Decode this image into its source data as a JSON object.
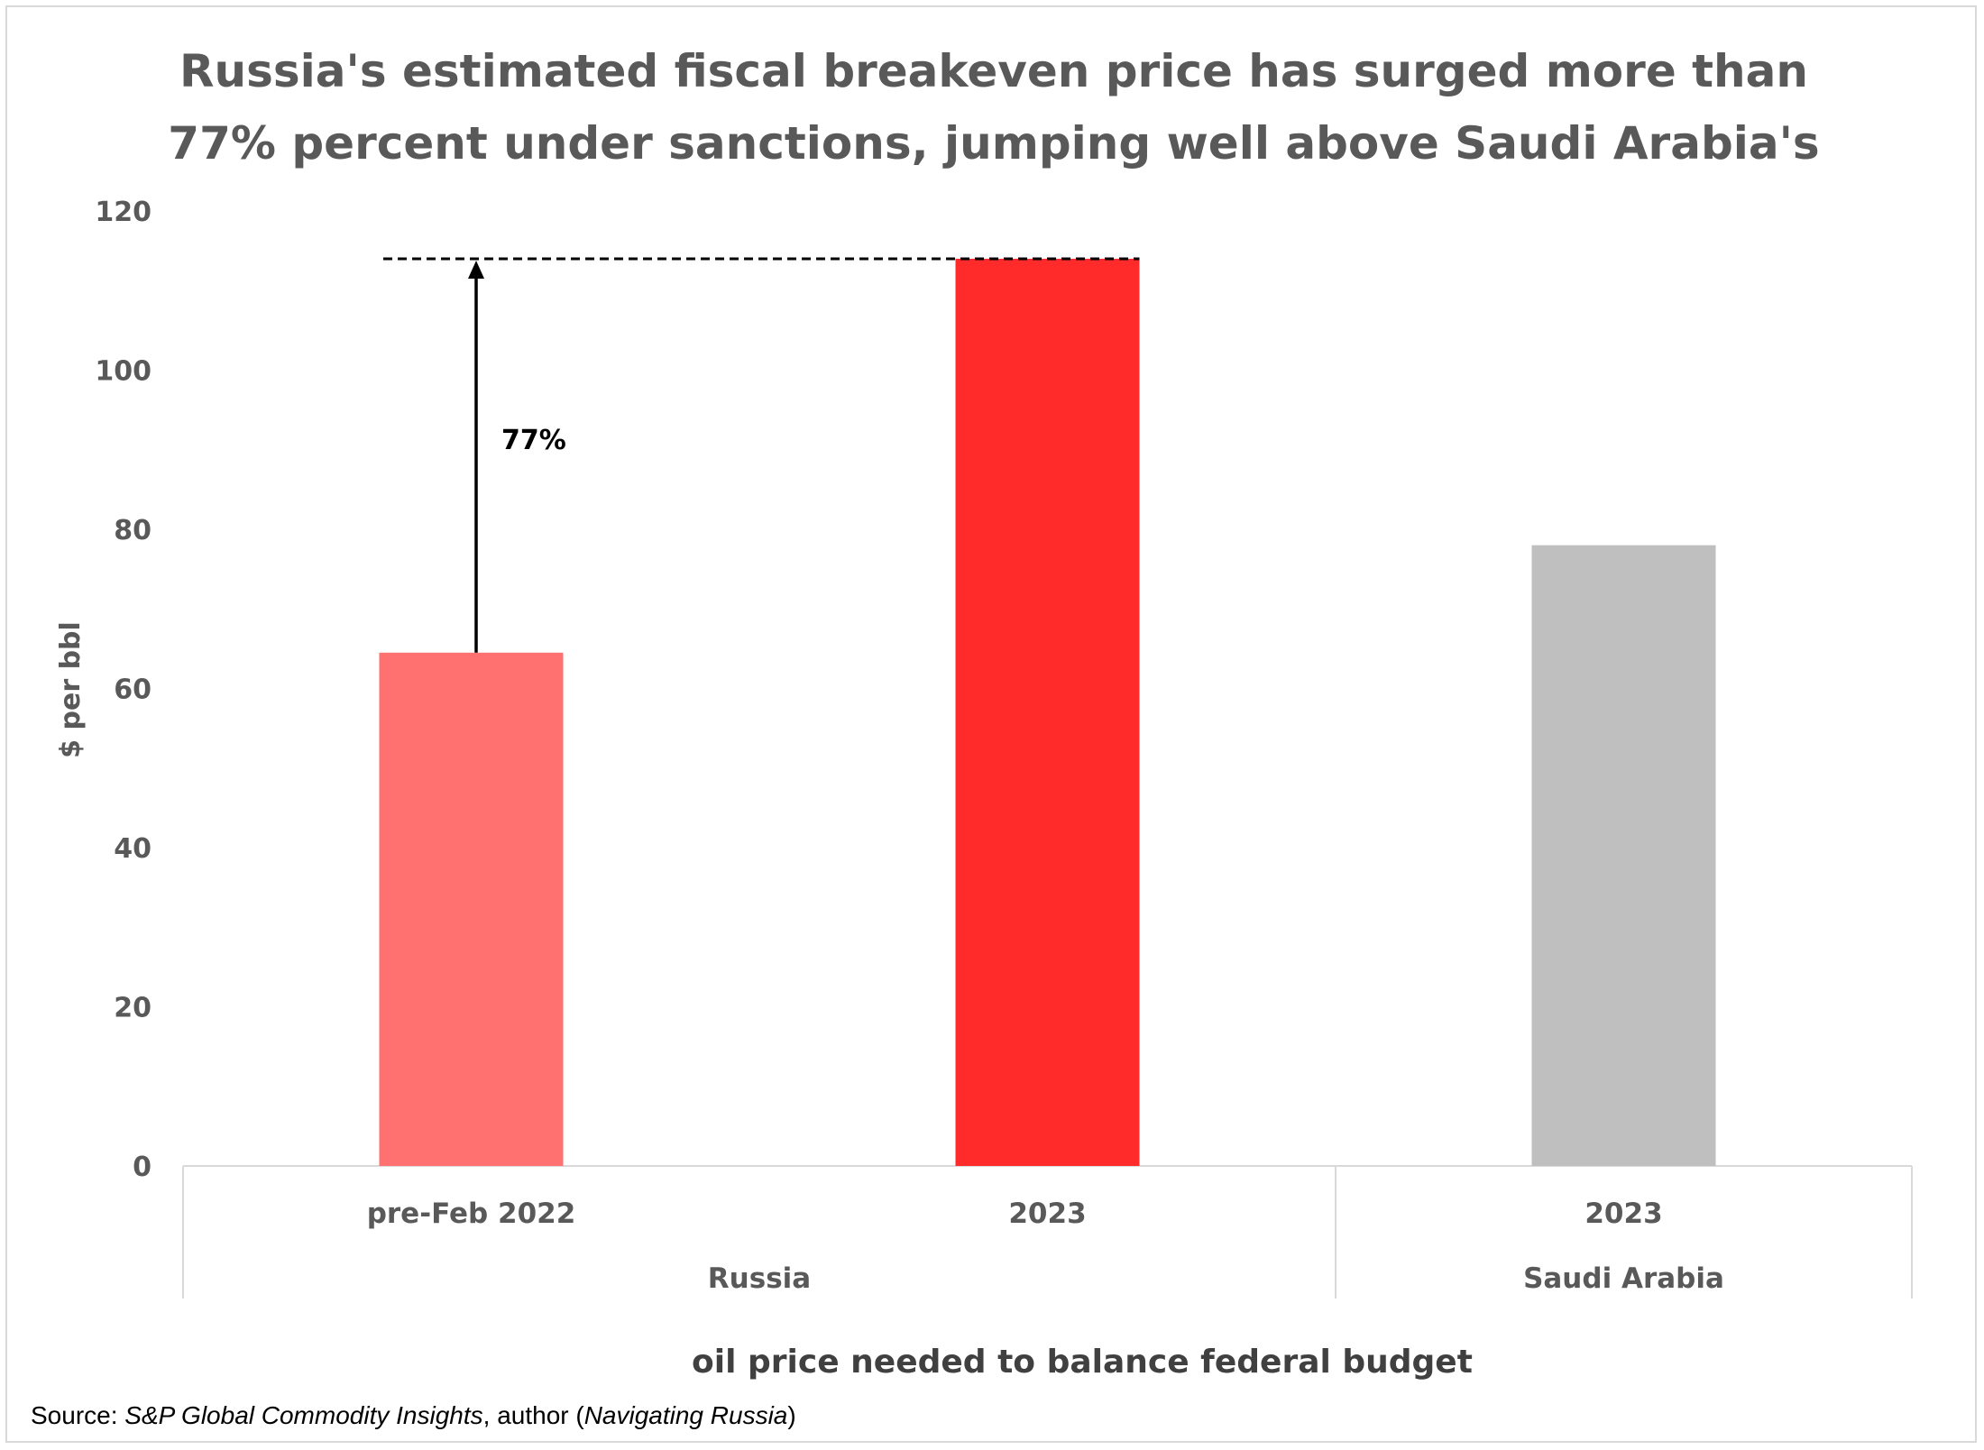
{
  "chart_data": {
    "type": "bar",
    "title": [
      "Russia's estimated fiscal breakeven price has surged more than",
      "77% percent under sanctions, jumping well above Saudi Arabia's"
    ],
    "ylabel": "$ per bbl",
    "xlabel": "oil price needed to balance federal budget",
    "ylim": [
      0,
      120
    ],
    "yticks": [
      0,
      20,
      40,
      60,
      80,
      100,
      120
    ],
    "categories": [
      "pre-Feb 2022",
      "2023",
      "2023"
    ],
    "groups": [
      {
        "label": "Russia",
        "span": 2
      },
      {
        "label": "Saudi Arabia",
        "span": 1
      }
    ],
    "values": [
      64.5,
      114,
      78
    ],
    "colors": [
      "#ff7171",
      "#ff2a2a",
      "#bfbfbf"
    ],
    "grid": false,
    "annotation": {
      "text": "77%",
      "from": 64.5,
      "to": 114,
      "reference_line_value": 114,
      "line_style": "dashed"
    }
  },
  "source": {
    "prefix": "Source: ",
    "publisher": "S&P Global Commodity Insights",
    "middle": ", author (",
    "blog": "Navigating Russia",
    "suffix": ")"
  }
}
